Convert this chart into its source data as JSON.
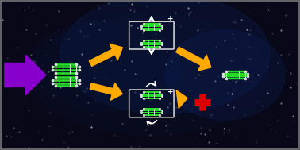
{
  "bg_color_dark": "#080818",
  "pyrene_green": "#22dd22",
  "pyrene_white": "#dddddd",
  "arrow_orange": "#ffaa00",
  "arrow_purple": "#8800cc",
  "cross_red": "#dd0000",
  "box_color": "#cccccc",
  "star_color": "#ffffff",
  "figsize": [
    3.78,
    1.89
  ],
  "dpi": 100
}
